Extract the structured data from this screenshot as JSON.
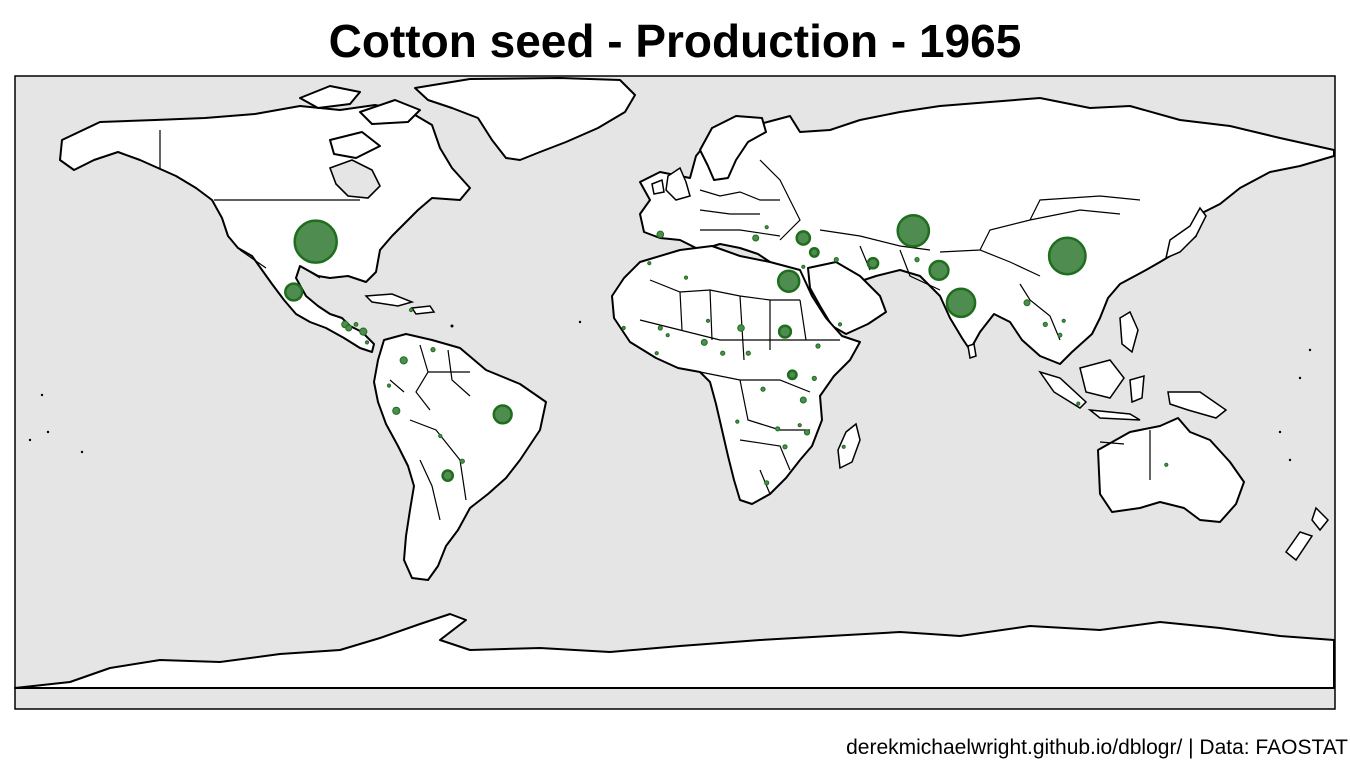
{
  "title": "Cotton seed - Production - 1965",
  "caption": "derekmichaelwright.github.io/dblogr/ | Data: FAOSTAT",
  "colors": {
    "ocean": "#e5e5e5",
    "land": "#ffffff",
    "border": "#000000",
    "bubble_fill": "#4f8c4f",
    "bubble_stroke": "#1e6e1e"
  },
  "chart_data": {
    "type": "bubble-map",
    "title": "Cotton seed - Production - 1965",
    "unit": "relative production (bubble area)",
    "points": [
      {
        "name": "United States",
        "lon": -98,
        "lat": 38,
        "value": 100
      },
      {
        "name": "China",
        "lon": 107,
        "lat": 34,
        "value": 75
      },
      {
        "name": "USSR",
        "lon": 65,
        "lat": 41,
        "value": 55
      },
      {
        "name": "India",
        "lon": 78,
        "lat": 21,
        "value": 45
      },
      {
        "name": "Egypt",
        "lon": 31,
        "lat": 27,
        "value": 25
      },
      {
        "name": "Pakistan",
        "lon": 72,
        "lat": 30,
        "value": 20
      },
      {
        "name": "Brazil",
        "lon": -47,
        "lat": -10,
        "value": 18
      },
      {
        "name": "Mexico",
        "lon": -104,
        "lat": 24,
        "value": 16
      },
      {
        "name": "Turkey",
        "lon": 35,
        "lat": 39,
        "value": 10
      },
      {
        "name": "Sudan",
        "lon": 30,
        "lat": 13,
        "value": 8
      },
      {
        "name": "Iran",
        "lon": 54,
        "lat": 32,
        "value": 6
      },
      {
        "name": "Argentina",
        "lon": -62,
        "lat": -27,
        "value": 6
      },
      {
        "name": "Syria",
        "lon": 38,
        "lat": 35,
        "value": 4
      },
      {
        "name": "Uganda",
        "lon": 32,
        "lat": 1,
        "value": 4
      },
      {
        "name": "Peru",
        "lon": -76,
        "lat": -9,
        "value": 3
      },
      {
        "name": "Colombia",
        "lon": -74,
        "lat": 5,
        "value": 3
      },
      {
        "name": "Nicaragua",
        "lon": -85,
        "lat": 13,
        "value": 3
      },
      {
        "name": "Spain",
        "lon": -4,
        "lat": 40,
        "value": 2.5
      },
      {
        "name": "Chad",
        "lon": 18,
        "lat": 14,
        "value": 2.5
      },
      {
        "name": "Guatemala",
        "lon": -90,
        "lat": 15,
        "value": 2.5
      },
      {
        "name": "El Salvador",
        "lon": -89,
        "lat": 14,
        "value": 2
      },
      {
        "name": "Burma",
        "lon": 96,
        "lat": 21,
        "value": 2
      },
      {
        "name": "Nigeria",
        "lon": 8,
        "lat": 10,
        "value": 2
      },
      {
        "name": "Greece",
        "lon": 22,
        "lat": 39,
        "value": 2
      },
      {
        "name": "Tanzania",
        "lon": 35,
        "lat": -6,
        "value": 2
      },
      {
        "name": "Mozambique",
        "lon": 36,
        "lat": -15,
        "value": 1.5
      },
      {
        "name": "Afghanistan",
        "lon": 66,
        "lat": 33,
        "value": 1
      },
      {
        "name": "Iraq",
        "lon": 44,
        "lat": 33,
        "value": 1
      },
      {
        "name": "Mali",
        "lon": -4,
        "lat": 14,
        "value": 1
      },
      {
        "name": "Cameroon",
        "lon": 13,
        "lat": 7,
        "value": 1
      },
      {
        "name": "Central African Republic",
        "lon": 20,
        "lat": 7,
        "value": 1
      },
      {
        "name": "Ethiopia",
        "lon": 39,
        "lat": 9,
        "value": 1
      },
      {
        "name": "Kenya",
        "lon": 38,
        "lat": 0,
        "value": 1
      },
      {
        "name": "Congo",
        "lon": 24,
        "lat": -3,
        "value": 1
      },
      {
        "name": "Zambia",
        "lon": 28,
        "lat": -14,
        "value": 1
      },
      {
        "name": "Rhodesia",
        "lon": 30,
        "lat": -19,
        "value": 1
      },
      {
        "name": "South Africa",
        "lon": 25,
        "lat": -29,
        "value": 1
      },
      {
        "name": "Paraguay",
        "lon": -58,
        "lat": -23,
        "value": 1
      },
      {
        "name": "Venezuela",
        "lon": -66,
        "lat": 8,
        "value": 1
      },
      {
        "name": "Thailand",
        "lon": 101,
        "lat": 15,
        "value": 1
      },
      {
        "name": "Cambodia",
        "lon": 105,
        "lat": 12,
        "value": 0.8
      },
      {
        "name": "Honduras",
        "lon": -87,
        "lat": 15,
        "value": 0.8
      },
      {
        "name": "Costa Rica",
        "lon": -84,
        "lat": 10,
        "value": 0.6
      },
      {
        "name": "Ecuador",
        "lon": -78,
        "lat": -2,
        "value": 0.6
      },
      {
        "name": "Senegal",
        "lon": -14,
        "lat": 14,
        "value": 0.5
      },
      {
        "name": "Upper Volta",
        "lon": -2,
        "lat": 12,
        "value": 0.5
      },
      {
        "name": "Ivory Coast",
        "lon": -5,
        "lat": 7,
        "value": 0.5
      },
      {
        "name": "Niger",
        "lon": 9,
        "lat": 16,
        "value": 0.5
      },
      {
        "name": "Algeria",
        "lon": 3,
        "lat": 28,
        "value": 0.4
      },
      {
        "name": "Morocco",
        "lon": -7,
        "lat": 32,
        "value": 0.4
      },
      {
        "name": "Yemen",
        "lon": 45,
        "lat": 15,
        "value": 0.4
      },
      {
        "name": "Angola",
        "lon": 17,
        "lat": -12,
        "value": 0.4
      },
      {
        "name": "Madagascar",
        "lon": 46,
        "lat": -19,
        "value": 0.4
      },
      {
        "name": "Malawi",
        "lon": 34,
        "lat": -13,
        "value": 0.4
      },
      {
        "name": "Bolivia",
        "lon": -64,
        "lat": -16,
        "value": 0.4
      },
      {
        "name": "Haiti",
        "lon": -72,
        "lat": 19,
        "value": 0.3
      },
      {
        "name": "Australia",
        "lon": 134,
        "lat": -24,
        "value": 0.3
      },
      {
        "name": "Indonesia",
        "lon": 110,
        "lat": -7,
        "value": 0.3
      },
      {
        "name": "Vietnam",
        "lon": 106,
        "lat": 16,
        "value": 0.3
      },
      {
        "name": "Israel",
        "lon": 35,
        "lat": 31,
        "value": 0.3
      },
      {
        "name": "Bulgaria",
        "lon": 25,
        "lat": 42,
        "value": 0.3
      }
    ]
  }
}
